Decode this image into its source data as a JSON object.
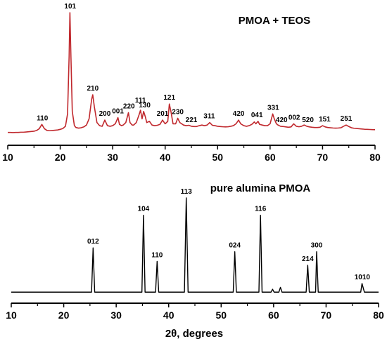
{
  "chart_data": [
    {
      "type": "line",
      "title": "PMOA + TEOS",
      "xlabel": "",
      "ylabel": "",
      "xlim": [
        10,
        80
      ],
      "x_ticks": [
        "10",
        "20",
        "30",
        "40",
        "50",
        "60",
        "70",
        "80"
      ],
      "grid": false,
      "series": [
        {
          "color": "#c0282d",
          "points": [
            [
              10,
              0.03
            ],
            [
              10.5,
              0.03
            ],
            [
              11,
              0.029
            ],
            [
              11.5,
              0.03
            ],
            [
              12,
              0.03
            ],
            [
              12.5,
              0.032
            ],
            [
              13,
              0.032
            ],
            [
              13.5,
              0.034
            ],
            [
              14,
              0.036
            ],
            [
              14.5,
              0.038
            ],
            [
              15,
              0.04
            ],
            [
              15.5,
              0.046
            ],
            [
              16,
              0.06
            ],
            [
              16.5,
              0.095
            ],
            [
              17,
              0.06
            ],
            [
              17.5,
              0.046
            ],
            [
              18,
              0.044
            ],
            [
              18.5,
              0.046
            ],
            [
              19,
              0.048
            ],
            [
              19.5,
              0.05
            ],
            [
              20,
              0.055
            ],
            [
              20.5,
              0.062
            ],
            [
              21,
              0.08
            ],
            [
              21.4,
              0.18
            ],
            [
              21.7,
              0.65
            ],
            [
              21.85,
              1.0
            ],
            [
              22.0,
              0.72
            ],
            [
              22.3,
              0.2
            ],
            [
              22.7,
              0.085
            ],
            [
              23,
              0.07
            ],
            [
              23.5,
              0.065
            ],
            [
              24,
              0.068
            ],
            [
              24.5,
              0.075
            ],
            [
              25,
              0.09
            ],
            [
              25.5,
              0.14
            ],
            [
              26,
              0.3
            ],
            [
              26.2,
              0.335
            ],
            [
              26.5,
              0.24
            ],
            [
              27,
              0.11
            ],
            [
              27.5,
              0.085
            ],
            [
              28,
              0.08
            ],
            [
              28.5,
              0.13
            ],
            [
              29,
              0.085
            ],
            [
              29.5,
              0.08
            ],
            [
              30,
              0.085
            ],
            [
              30.5,
              0.1
            ],
            [
              31,
              0.15
            ],
            [
              31.3,
              0.095
            ],
            [
              31.7,
              0.085
            ],
            [
              32,
              0.09
            ],
            [
              32.5,
              0.11
            ],
            [
              33,
              0.19
            ],
            [
              33.3,
              0.11
            ],
            [
              33.7,
              0.09
            ],
            [
              34,
              0.09
            ],
            [
              34.5,
              0.11
            ],
            [
              35,
              0.17
            ],
            [
              35.3,
              0.21
            ],
            [
              35.6,
              0.14
            ],
            [
              35.9,
              0.2
            ],
            [
              36.2,
              0.16
            ],
            [
              36.5,
              0.11
            ],
            [
              37,
              0.12
            ],
            [
              37.5,
              0.09
            ],
            [
              38,
              0.085
            ],
            [
              38.5,
              0.088
            ],
            [
              39,
              0.095
            ],
            [
              39.5,
              0.13
            ],
            [
              40,
              0.1
            ],
            [
              40.5,
              0.12
            ],
            [
              40.8,
              0.26
            ],
            [
              41.1,
              0.2
            ],
            [
              41.5,
              0.1
            ],
            [
              42,
              0.1
            ],
            [
              42.4,
              0.145
            ],
            [
              42.8,
              0.11
            ],
            [
              43.5,
              0.09
            ],
            [
              44,
              0.085
            ],
            [
              44.5,
              0.088
            ],
            [
              45,
              0.08
            ],
            [
              45.5,
              0.078
            ],
            [
              46,
              0.078
            ],
            [
              46.5,
              0.085
            ],
            [
              47,
              0.09
            ],
            [
              47.5,
              0.085
            ],
            [
              48,
              0.09
            ],
            [
              48.5,
              0.11
            ],
            [
              49,
              0.088
            ],
            [
              49.5,
              0.085
            ],
            [
              50,
              0.08
            ],
            [
              50.5,
              0.078
            ],
            [
              51,
              0.076
            ],
            [
              51.5,
              0.075
            ],
            [
              52,
              0.076
            ],
            [
              52.5,
              0.08
            ],
            [
              53,
              0.085
            ],
            [
              53.5,
              0.1
            ],
            [
              54,
              0.13
            ],
            [
              54.4,
              0.1
            ],
            [
              55,
              0.085
            ],
            [
              55.5,
              0.08
            ],
            [
              56,
              0.085
            ],
            [
              56.5,
              0.095
            ],
            [
              57,
              0.115
            ],
            [
              57.3,
              0.1
            ],
            [
              57.7,
              0.12
            ],
            [
              58,
              0.095
            ],
            [
              58.5,
              0.09
            ],
            [
              59,
              0.085
            ],
            [
              59.5,
              0.085
            ],
            [
              60,
              0.1
            ],
            [
              60.5,
              0.18
            ],
            [
              60.8,
              0.14
            ],
            [
              61.2,
              0.1
            ],
            [
              61.5,
              0.09
            ],
            [
              62,
              0.08
            ],
            [
              62.5,
              0.078
            ],
            [
              63,
              0.075
            ],
            [
              63.5,
              0.072
            ],
            [
              64,
              0.075
            ],
            [
              64.5,
              0.1
            ],
            [
              65,
              0.08
            ],
            [
              65.5,
              0.076
            ],
            [
              66,
              0.08
            ],
            [
              66.5,
              0.09
            ],
            [
              67,
              0.08
            ],
            [
              67.5,
              0.075
            ],
            [
              68,
              0.072
            ],
            [
              68.5,
              0.07
            ],
            [
              69,
              0.07
            ],
            [
              69.5,
              0.072
            ],
            [
              70,
              0.085
            ],
            [
              70.5,
              0.075
            ],
            [
              71,
              0.07
            ],
            [
              71.5,
              0.068
            ],
            [
              72,
              0.066
            ],
            [
              72.5,
              0.065
            ],
            [
              73,
              0.066
            ],
            [
              73.5,
              0.068
            ],
            [
              74,
              0.08
            ],
            [
              74.5,
              0.09
            ],
            [
              75,
              0.078
            ],
            [
              75.5,
              0.068
            ],
            [
              76,
              0.064
            ],
            [
              76.5,
              0.062
            ],
            [
              77,
              0.06
            ],
            [
              77.5,
              0.058
            ],
            [
              78,
              0.056
            ],
            [
              78.5,
              0.055
            ],
            [
              79,
              0.054
            ],
            [
              79.5,
              0.053
            ],
            [
              80,
              0.052
            ]
          ]
        }
      ],
      "peak_labels": [
        {
          "x": 16.6,
          "y": 0.095,
          "text": "110"
        },
        {
          "x": 21.9,
          "y": 1.0,
          "text": "101"
        },
        {
          "x": 26.2,
          "y": 0.335,
          "text": "210"
        },
        {
          "x": 28.5,
          "y": 0.13,
          "text": "200"
        },
        {
          "x": 31.0,
          "y": 0.15,
          "text": "001"
        },
        {
          "x": 33.1,
          "y": 0.19,
          "text": "220"
        },
        {
          "x": 35.3,
          "y": 0.24,
          "text": "111"
        },
        {
          "x": 36.1,
          "y": 0.2,
          "text": "130"
        },
        {
          "x": 39.5,
          "y": 0.13,
          "text": "201"
        },
        {
          "x": 40.8,
          "y": 0.26,
          "text": "121"
        },
        {
          "x": 42.4,
          "y": 0.145,
          "text": "230"
        },
        {
          "x": 45.0,
          "y": 0.08,
          "text": "221"
        },
        {
          "x": 48.4,
          "y": 0.11,
          "text": "311"
        },
        {
          "x": 54.0,
          "y": 0.13,
          "text": "420"
        },
        {
          "x": 57.5,
          "y": 0.12,
          "text": "041"
        },
        {
          "x": 60.6,
          "y": 0.18,
          "text": "331"
        },
        {
          "x": 62.2,
          "y": 0.08,
          "text": "420"
        },
        {
          "x": 64.6,
          "y": 0.1,
          "text": "002"
        },
        {
          "x": 67.2,
          "y": 0.08,
          "text": "520"
        },
        {
          "x": 70.4,
          "y": 0.085,
          "text": "151"
        },
        {
          "x": 74.5,
          "y": 0.09,
          "text": "251"
        }
      ]
    },
    {
      "type": "line",
      "title": "pure alumina PMOA",
      "xlabel": "2θ, degrees",
      "ylabel": "",
      "xlim": [
        10,
        80
      ],
      "x_ticks": [
        "10",
        "20",
        "30",
        "40",
        "50",
        "60",
        "70",
        "80"
      ],
      "grid": false,
      "series": [
        {
          "color": "#000000",
          "points": [
            [
              10,
              0.02
            ],
            [
              15,
              0.02
            ],
            [
              20,
              0.02
            ],
            [
              25.3,
              0.02
            ],
            [
              25.6,
              0.48
            ],
            [
              25.9,
              0.02
            ],
            [
              30,
              0.02
            ],
            [
              34.9,
              0.02
            ],
            [
              35.2,
              0.82
            ],
            [
              35.5,
              0.02
            ],
            [
              37.5,
              0.02
            ],
            [
              37.8,
              0.34
            ],
            [
              38.1,
              0.02
            ],
            [
              40,
              0.02
            ],
            [
              43.0,
              0.02
            ],
            [
              43.35,
              1.0
            ],
            [
              43.7,
              0.02
            ],
            [
              46,
              0.02
            ],
            [
              52.3,
              0.02
            ],
            [
              52.6,
              0.44
            ],
            [
              52.9,
              0.02
            ],
            [
              57.2,
              0.02
            ],
            [
              57.5,
              0.82
            ],
            [
              57.8,
              0.02
            ],
            [
              59.5,
              0.02
            ],
            [
              59.8,
              0.05
            ],
            [
              60.1,
              0.02
            ],
            [
              61.0,
              0.02
            ],
            [
              61.3,
              0.07
            ],
            [
              61.6,
              0.02
            ],
            [
              66.2,
              0.02
            ],
            [
              66.5,
              0.3
            ],
            [
              66.8,
              0.02
            ],
            [
              68.0,
              0.02
            ],
            [
              68.2,
              0.44
            ],
            [
              68.5,
              0.02
            ],
            [
              70,
              0.02
            ],
            [
              74,
              0.02
            ],
            [
              76.6,
              0.02
            ],
            [
              76.85,
              0.11
            ],
            [
              77.1,
              0.06
            ],
            [
              77.3,
              0.02
            ],
            [
              80,
              0.02
            ]
          ]
        }
      ],
      "peak_labels": [
        {
          "x": 25.6,
          "y": 0.48,
          "text": "012"
        },
        {
          "x": 35.2,
          "y": 0.82,
          "text": "104"
        },
        {
          "x": 37.8,
          "y": 0.34,
          "text": "110"
        },
        {
          "x": 43.35,
          "y": 1.0,
          "text": "113"
        },
        {
          "x": 52.6,
          "y": 0.44,
          "text": "024"
        },
        {
          "x": 57.5,
          "y": 0.82,
          "text": "116"
        },
        {
          "x": 66.5,
          "y": 0.3,
          "text": "214"
        },
        {
          "x": 68.2,
          "y": 0.44,
          "text": "300"
        },
        {
          "x": 76.9,
          "y": 0.11,
          "text": "1010"
        }
      ]
    }
  ]
}
